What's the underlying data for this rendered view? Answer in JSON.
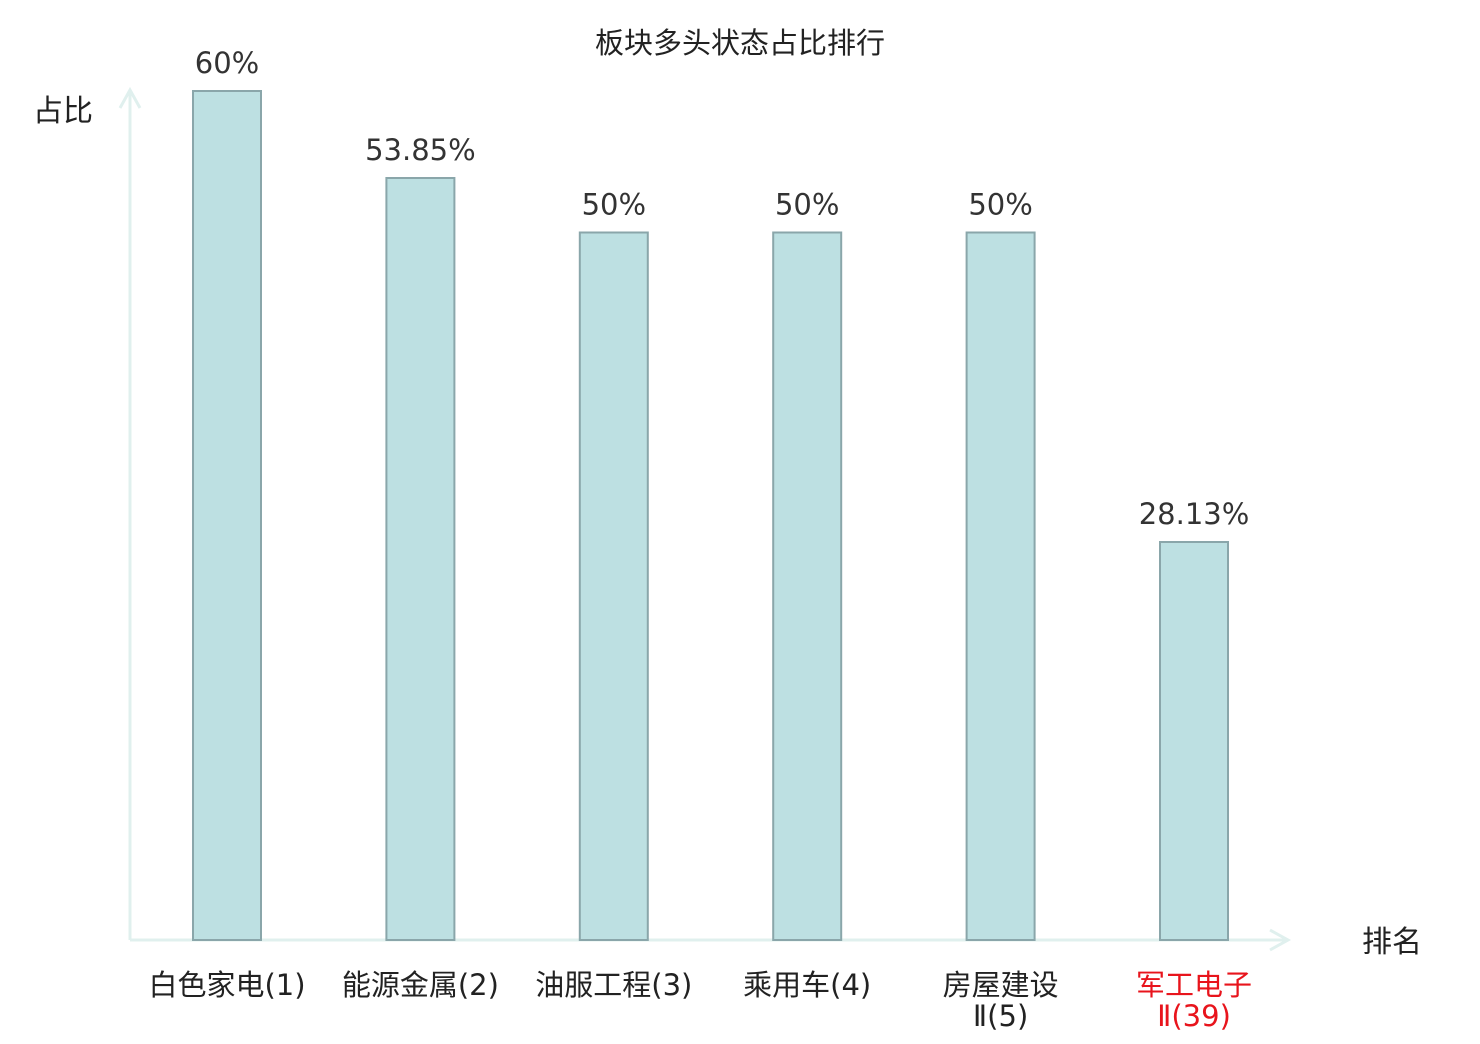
{
  "chart_data": {
    "type": "bar",
    "title": "板块多头状态占比排行",
    "ylabel": "占比",
    "xlabel": "排名",
    "ylim": [
      0,
      60
    ],
    "grid": false,
    "categories": [
      {
        "lines": [
          "白色家电(1)"
        ],
        "highlight": false
      },
      {
        "lines": [
          "能源金属(2)"
        ],
        "highlight": false
      },
      {
        "lines": [
          "油服工程(3)"
        ],
        "highlight": false
      },
      {
        "lines": [
          "乘用车(4)"
        ],
        "highlight": false
      },
      {
        "lines": [
          "房屋建设",
          "Ⅱ(5)"
        ],
        "highlight": false
      },
      {
        "lines": [
          "军工电子",
          "Ⅱ(39)"
        ],
        "highlight": true
      }
    ],
    "values": [
      60,
      53.85,
      50,
      50,
      50,
      28.13
    ],
    "value_labels": [
      "60%",
      "53.85%",
      "50%",
      "50%",
      "50%",
      "28.13%"
    ]
  },
  "colors": {
    "bar_fill": "#bde0e2",
    "bar_stroke": "#8aa6aa",
    "axis": "#e0f0ee",
    "text": "#222222",
    "value_text": "#333333",
    "highlight": "#e8141c"
  }
}
